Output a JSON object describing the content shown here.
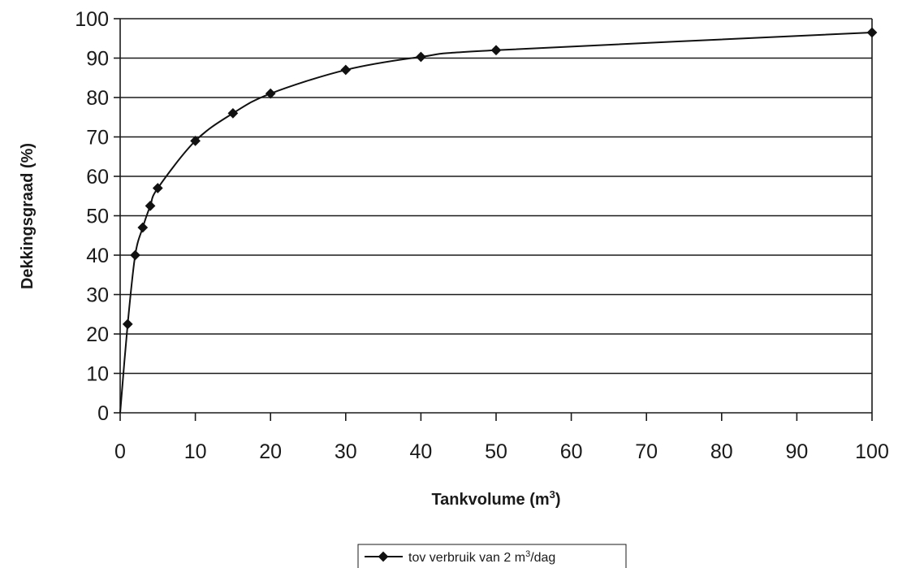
{
  "chart_data": {
    "type": "line",
    "title": "",
    "xlabel": "Tankvolume (m",
    "xlabel_sup": "3",
    "xlabel_tail": ")",
    "ylabel": "Dekkingsgraad (%)",
    "xlim": [
      0,
      100
    ],
    "ylim": [
      0,
      100
    ],
    "x_ticks": [
      "0",
      "10",
      "20",
      "30",
      "40",
      "50",
      "60",
      "70",
      "80",
      "90",
      "100"
    ],
    "y_ticks": [
      "0",
      "10",
      "20",
      "30",
      "40",
      "50",
      "60",
      "70",
      "80",
      "90",
      "100"
    ],
    "grid": "horizontal",
    "legend_position": "bottom-center",
    "series": [
      {
        "name": "tov verbruik van 2 m",
        "name_sup": "3",
        "name_tail": "/dag",
        "color": "#111111",
        "marker": "diamond",
        "x": [
          1,
          2,
          3,
          4,
          5,
          10,
          15,
          20,
          30,
          40,
          50,
          100
        ],
        "y": [
          22.5,
          40,
          47,
          52.5,
          57,
          69,
          76,
          81,
          87,
          90.3,
          92,
          96.5
        ]
      }
    ]
  }
}
